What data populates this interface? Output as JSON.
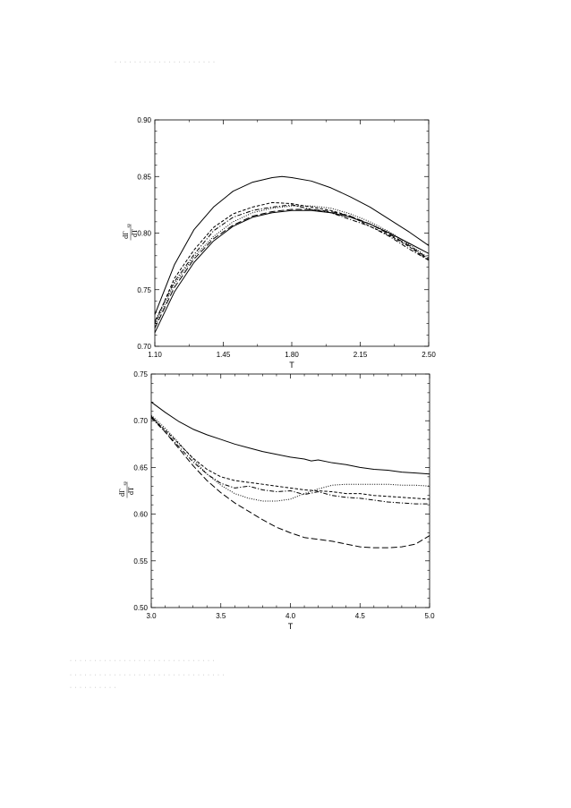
{
  "header_text": "· · · · ·  ·  · · ·  · · ·  · · · · · · · · ·",
  "caption_lines": [
    "· ·  ·  ·   ·   · · · · ·   ·  ·  · · · ·   · · ·  · · · ·  · · · ·  ·   · ·",
    "· · ·  · ·   · · ·   · · · · ·  · · ·   · · · · · ·   · · ·   · · · ·  · · ·",
    "· · ·  · · · ·  · · ·"
  ],
  "chart_data": [
    {
      "type": "line",
      "xlabel": "T",
      "ylabel": "dΓ",
      "ylabel_sub": "sp",
      "ylabel_denominator": "dT",
      "xlim": [
        1.1,
        2.5
      ],
      "ylim": [
        0.7,
        0.9
      ],
      "xticks": [
        "1.10",
        "1.45",
        "1.80",
        "2.15",
        "2.50"
      ],
      "yticks": [
        "0.70",
        "0.75",
        "0.80",
        "0.85",
        "0.90"
      ],
      "grid": false,
      "series": [
        {
          "style": "solid",
          "x": [
            1.1,
            1.2,
            1.3,
            1.4,
            1.5,
            1.6,
            1.7,
            1.75,
            1.8,
            1.9,
            2.0,
            2.1,
            2.2,
            2.3,
            2.4,
            2.5
          ],
          "y": [
            0.728,
            0.772,
            0.803,
            0.823,
            0.837,
            0.845,
            0.849,
            0.85,
            0.849,
            0.846,
            0.84,
            0.832,
            0.823,
            0.812,
            0.801,
            0.789
          ]
        },
        {
          "style": "solid",
          "x": [
            1.1,
            1.2,
            1.3,
            1.4,
            1.5,
            1.6,
            1.7,
            1.8,
            1.9,
            2.0,
            2.1,
            2.2,
            2.3,
            2.4,
            2.5
          ],
          "y": [
            0.712,
            0.748,
            0.774,
            0.793,
            0.806,
            0.814,
            0.818,
            0.82,
            0.82,
            0.818,
            0.814,
            0.808,
            0.8,
            0.791,
            0.782
          ]
        },
        {
          "style": "dashed",
          "x": [
            1.1,
            1.2,
            1.3,
            1.4,
            1.5,
            1.6,
            1.7,
            1.8,
            1.9,
            2.0,
            2.1,
            2.2,
            2.3,
            2.4,
            2.5
          ],
          "y": [
            0.716,
            0.752,
            0.777,
            0.795,
            0.807,
            0.815,
            0.819,
            0.821,
            0.821,
            0.819,
            0.815,
            0.808,
            0.799,
            0.789,
            0.777
          ]
        },
        {
          "style": "dotted",
          "x": [
            1.1,
            1.2,
            1.3,
            1.4,
            1.5,
            1.6,
            1.7,
            1.8,
            1.9,
            2.0,
            2.1,
            2.2,
            2.3,
            2.4,
            2.5
          ],
          "y": [
            0.718,
            0.755,
            0.779,
            0.797,
            0.81,
            0.818,
            0.822,
            0.824,
            0.824,
            0.822,
            0.817,
            0.81,
            0.801,
            0.79,
            0.778
          ]
        },
        {
          "style": "short-dash",
          "x": [
            1.1,
            1.2,
            1.3,
            1.4,
            1.5,
            1.6,
            1.7,
            1.8,
            1.9,
            2.0,
            2.1,
            2.2,
            2.3,
            2.4,
            2.5
          ],
          "y": [
            0.72,
            0.76,
            0.785,
            0.805,
            0.817,
            0.823,
            0.827,
            0.826,
            0.823,
            0.82,
            0.815,
            0.806,
            0.798,
            0.788,
            0.776
          ]
        },
        {
          "style": "dash-dot",
          "x": [
            1.1,
            1.2,
            1.3,
            1.4,
            1.5,
            1.6,
            1.7,
            1.8,
            1.9,
            2.0,
            2.1,
            2.2,
            2.3,
            2.4,
            2.5
          ],
          "y": [
            0.722,
            0.757,
            0.781,
            0.802,
            0.814,
            0.82,
            0.823,
            0.825,
            0.821,
            0.818,
            0.812,
            0.806,
            0.797,
            0.786,
            0.776
          ]
        }
      ]
    },
    {
      "type": "line",
      "xlabel": "T",
      "ylabel": "dΓ",
      "ylabel_sub": "sp",
      "ylabel_denominator": "dT",
      "xlim": [
        3.0,
        5.0
      ],
      "ylim": [
        0.5,
        0.75
      ],
      "xticks": [
        "3.0",
        "3.5",
        "4.0",
        "4.5",
        "5.0"
      ],
      "yticks": [
        "0.50",
        "0.55",
        "0.60",
        "0.65",
        "0.70",
        "0.75"
      ],
      "grid": false,
      "series": [
        {
          "style": "solid",
          "x": [
            3.0,
            3.1,
            3.2,
            3.3,
            3.4,
            3.5,
            3.6,
            3.7,
            3.8,
            3.9,
            4.0,
            4.1,
            4.15,
            4.2,
            4.3,
            4.4,
            4.5,
            4.6,
            4.7,
            4.8,
            4.9,
            5.0
          ],
          "y": [
            0.72,
            0.709,
            0.699,
            0.691,
            0.685,
            0.68,
            0.675,
            0.671,
            0.667,
            0.664,
            0.661,
            0.659,
            0.657,
            0.658,
            0.655,
            0.653,
            0.65,
            0.648,
            0.647,
            0.645,
            0.644,
            0.643
          ]
        },
        {
          "style": "dashed",
          "x": [
            3.0,
            3.1,
            3.2,
            3.3,
            3.4,
            3.5,
            3.6,
            3.7,
            3.8,
            3.9,
            4.0,
            4.1,
            4.2,
            4.3,
            4.4,
            4.5,
            4.6,
            4.7,
            4.8,
            4.9,
            5.0
          ],
          "y": [
            0.705,
            0.688,
            0.67,
            0.652,
            0.636,
            0.623,
            0.612,
            0.603,
            0.594,
            0.586,
            0.58,
            0.575,
            0.573,
            0.571,
            0.568,
            0.565,
            0.564,
            0.564,
            0.565,
            0.568,
            0.577
          ]
        },
        {
          "style": "dotted",
          "x": [
            3.0,
            3.1,
            3.2,
            3.3,
            3.4,
            3.5,
            3.6,
            3.7,
            3.8,
            3.9,
            4.0,
            4.1,
            4.2,
            4.3,
            4.4,
            4.5,
            4.6,
            4.7,
            4.8,
            4.9,
            5.0
          ],
          "y": [
            0.706,
            0.692,
            0.676,
            0.659,
            0.643,
            0.631,
            0.622,
            0.617,
            0.614,
            0.614,
            0.616,
            0.622,
            0.627,
            0.631,
            0.632,
            0.632,
            0.632,
            0.632,
            0.631,
            0.631,
            0.63
          ]
        },
        {
          "style": "short-dash",
          "x": [
            3.0,
            3.1,
            3.2,
            3.3,
            3.4,
            3.5,
            3.6,
            3.7,
            3.8,
            3.9,
            4.0,
            4.1,
            4.2,
            4.3,
            4.4,
            4.5,
            4.6,
            4.7,
            4.8,
            4.9,
            5.0
          ],
          "y": [
            0.704,
            0.69,
            0.675,
            0.66,
            0.648,
            0.64,
            0.636,
            0.634,
            0.632,
            0.63,
            0.628,
            0.626,
            0.625,
            0.624,
            0.622,
            0.622,
            0.62,
            0.619,
            0.618,
            0.617,
            0.616
          ]
        },
        {
          "style": "dash-dot",
          "x": [
            3.0,
            3.1,
            3.2,
            3.3,
            3.4,
            3.5,
            3.6,
            3.7,
            3.8,
            3.9,
            4.0,
            4.1,
            4.2,
            4.3,
            4.4,
            4.5,
            4.6,
            4.7,
            4.8,
            4.9,
            5.0
          ],
          "y": [
            0.703,
            0.688,
            0.672,
            0.656,
            0.643,
            0.633,
            0.628,
            0.63,
            0.626,
            0.624,
            0.625,
            0.621,
            0.624,
            0.62,
            0.618,
            0.617,
            0.615,
            0.613,
            0.612,
            0.611,
            0.611
          ]
        }
      ]
    }
  ]
}
